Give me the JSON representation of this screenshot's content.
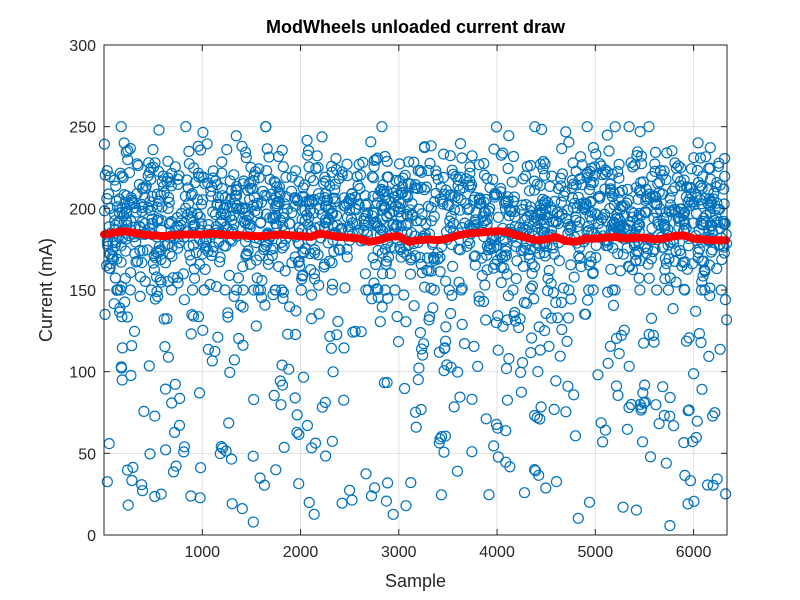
{
  "chart_data": {
    "type": "scatter",
    "title": "ModWheels unloaded current draw",
    "xlabel": "Sample",
    "ylabel": "Current (mA)",
    "xlim": [
      0,
      6340
    ],
    "ylim": [
      0,
      300
    ],
    "x_ticks": [
      1000,
      2000,
      3000,
      4000,
      5000,
      6000
    ],
    "y_ticks": [
      0,
      50,
      100,
      150,
      200,
      250,
      300
    ],
    "grid": true,
    "scatter_color": "#0072BD",
    "trend_color": "#FF0000",
    "n_samples": 6330,
    "scatter_distribution": {
      "dense_band_min": 150,
      "dense_band_max": 250,
      "center": 195,
      "sparse_tail_min": 0,
      "sparse_tail_max": 150
    },
    "series": [
      {
        "x": [
          0,
          100,
          200,
          300,
          400,
          500,
          600,
          700,
          800,
          900,
          1000,
          1100,
          1200,
          1300,
          1400,
          1500,
          1600,
          1700,
          1800,
          1900,
          2000,
          2100,
          2200,
          2300,
          2400,
          2500,
          2600,
          2700,
          2800,
          2900,
          3000,
          3100,
          3200,
          3300,
          3400,
          3500,
          3600,
          3700,
          3800,
          3900,
          4000,
          4100,
          4200,
          4300,
          4400,
          4500,
          4600,
          4700,
          4800,
          4900,
          5000,
          5100,
          5200,
          5300,
          5400,
          5500,
          5600,
          5700,
          5800,
          5900,
          6000,
          6100,
          6200,
          6330
        ],
        "values": [
          184,
          185,
          186,
          185,
          184,
          183.5,
          183,
          183.5,
          184,
          184,
          184,
          184.5,
          184,
          183.5,
          183.5,
          183,
          183,
          183.5,
          184,
          183.5,
          183,
          182.5,
          184.5,
          183.5,
          182.5,
          182,
          181.5,
          179.5,
          180.5,
          182.5,
          183,
          179.5,
          180.5,
          181,
          180.5,
          181.5,
          183.5,
          184.5,
          185,
          185.5,
          186,
          185.5,
          183.5,
          182,
          180.5,
          181,
          182.5,
          180,
          179.5,
          181.5,
          181.5,
          182,
          182.5,
          181.5,
          182,
          182,
          181,
          181.5,
          183,
          183.5,
          181.5,
          181,
          180.5,
          180.5
        ]
      }
    ]
  }
}
